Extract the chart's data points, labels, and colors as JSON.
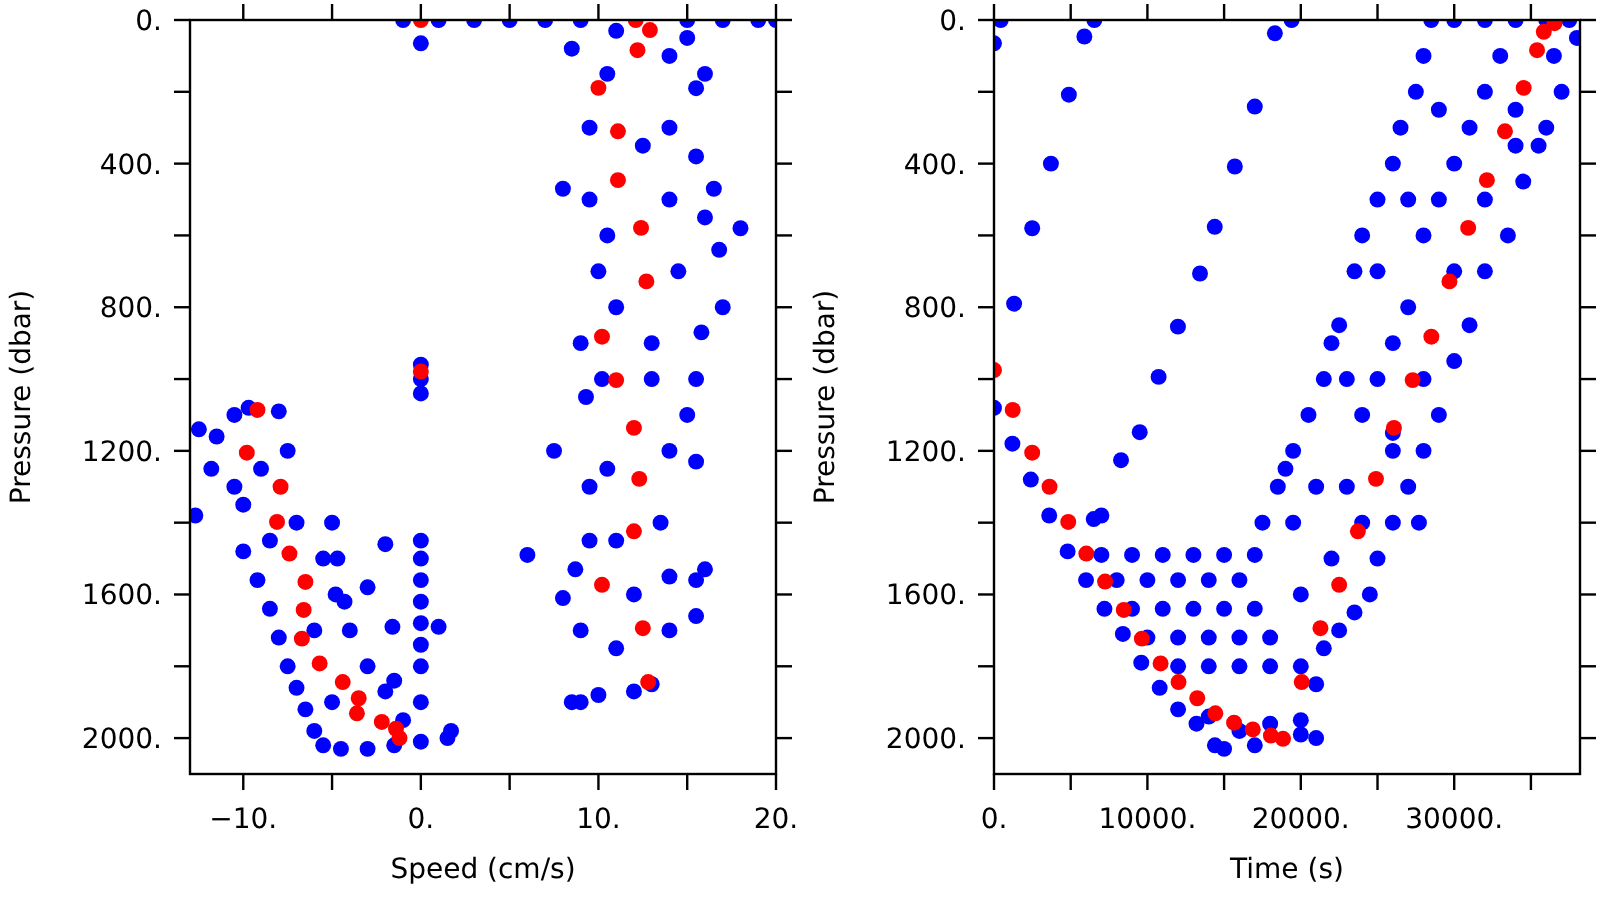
{
  "chart_data": [
    {
      "type": "scatter",
      "xlabel": "Speed (cm/s)",
      "ylabel": "Pressure (dbar)",
      "xlim": [
        -13,
        20
      ],
      "ylim": [
        2100,
        0
      ],
      "marker": "circle",
      "grid": false,
      "xticks": [
        {
          "value": -10,
          "label": "−10."
        },
        {
          "value": -5,
          "label": null
        },
        {
          "value": 0,
          "label": "0."
        },
        {
          "value": 5,
          "label": null
        },
        {
          "value": 10,
          "label": "10."
        },
        {
          "value": 15,
          "label": null
        },
        {
          "value": 20,
          "label": "20."
        }
      ],
      "yticks": [
        {
          "value": 0,
          "label": "0."
        },
        {
          "value": 200,
          "label": null
        },
        {
          "value": 400,
          "label": "400."
        },
        {
          "value": 600,
          "label": null
        },
        {
          "value": 800,
          "label": "800."
        },
        {
          "value": 1000,
          "label": null
        },
        {
          "value": 1200,
          "label": "1200."
        },
        {
          "value": 1400,
          "label": null
        },
        {
          "value": 1600,
          "label": "1600."
        },
        {
          "value": 1800,
          "label": null
        },
        {
          "value": 2000,
          "label": "2000."
        }
      ],
      "series": [
        {
          "color": "#0000ff",
          "x": [
            -1,
            1,
            3,
            5,
            7,
            9,
            15,
            17,
            19,
            20,
            0,
            0,
            0,
            0,
            0,
            0,
            0,
            0,
            0,
            0,
            0,
            0,
            -2,
            -1.6,
            1,
            -3,
            -4.7,
            -4.3,
            -1.5,
            6,
            -12.5,
            -12.7,
            -11.5,
            -10.5,
            -9.7,
            -8,
            -11.8,
            -10.5,
            -10,
            -9,
            -7.5,
            -10,
            -9.2,
            -8.5,
            -8,
            -7.5,
            -7,
            -6.5,
            -6,
            -5.5,
            -4.5,
            -3,
            -1.5,
            0,
            1.5,
            1.7,
            -5,
            -5.5,
            -4.8,
            -4,
            -3,
            -2,
            -1,
            -7,
            -6,
            -5,
            -8.5,
            8,
            7.5,
            8.5,
            9,
            10,
            12,
            13,
            8,
            8.7,
            9.5,
            16,
            15.5,
            15.5,
            14,
            9,
            9.5,
            15.5,
            15,
            15.5,
            9.3,
            9,
            15.8,
            17,
            16.8,
            18,
            16,
            16.5,
            15.5,
            9.5,
            15.5,
            16,
            8.5,
            15,
            10,
            9.5,
            10.5,
            14,
            14,
            14.5,
            13,
            14,
            13.5,
            11,
            10.5,
            11,
            10.5,
            12.5,
            11,
            14,
            11,
            13,
            12,
            10.2,
            14
          ],
          "values": [
            0,
            0,
            0,
            0,
            0,
            0,
            0,
            0,
            0,
            0,
            65,
            960,
            1000,
            1040,
            1450,
            1500,
            1560,
            1620,
            1680,
            1740,
            1800,
            1900,
            1460,
            1690,
            1690,
            1580,
            1500,
            1620,
            1840,
            1490,
            1140,
            1380,
            1160,
            1100,
            1080,
            1090,
            1250,
            1300,
            1350,
            1250,
            1200,
            1480,
            1560,
            1640,
            1720,
            1800,
            1860,
            1920,
            1980,
            2020,
            2030,
            2030,
            2020,
            2010,
            2000,
            1980,
            1400,
            1500,
            1600,
            1700,
            1800,
            1870,
            1950,
            1400,
            1700,
            1900,
            1450,
            470,
            1200,
            1900,
            1900,
            1880,
            1870,
            1850,
            1610,
            1530,
            1450,
            1530,
            1660,
            1560,
            1700,
            1700,
            1300,
            1230,
            1100,
            1000,
            1050,
            900,
            870,
            800,
            640,
            580,
            550,
            470,
            380,
            300,
            190,
            150,
            80,
            50,
            700,
            500,
            150,
            300,
            500,
            700,
            900,
            1200,
            1400,
            1450,
            1250,
            800,
            600,
            350,
            30,
            1550,
            1750,
            1000,
            1600,
            1000,
            100
          ]
        },
        {
          "color": "#ff0000",
          "x": [
            0,
            12.1,
            12.9,
            12.2,
            10,
            11.1,
            11.1,
            12.4,
            12.7,
            10.2,
            11,
            12,
            12.3,
            12,
            10.2,
            12.5,
            12.8,
            0,
            -9.2,
            -9.8,
            -7.9,
            -8.1,
            -7.4,
            -6.5,
            -6.6,
            -6.7,
            -5.7,
            -4.4,
            -3.5,
            -3.6,
            -2.2,
            -1.4,
            -1.2
          ],
          "values": [
            0,
            0,
            28,
            84,
            189,
            310,
            446,
            579,
            728,
            882,
            1003,
            1136,
            1278,
            1424,
            1573,
            1694,
            1844,
            979,
            1086,
            1205,
            1300,
            1398,
            1486,
            1565,
            1643,
            1723,
            1792,
            1844,
            1889,
            1931,
            1955,
            1974,
            2000
          ]
        }
      ]
    },
    {
      "type": "scatter",
      "xlabel": "Time (s)",
      "ylabel": "Pressure (dbar)",
      "xlim": [
        0,
        38200
      ],
      "ylim": [
        2100,
        0
      ],
      "marker": "circle",
      "grid": false,
      "xticks": [
        {
          "value": 0,
          "label": "0."
        },
        {
          "value": 5000,
          "label": null
        },
        {
          "value": 10000,
          "label": "10000."
        },
        {
          "value": 15000,
          "label": null
        },
        {
          "value": 20000,
          "label": "20000."
        },
        {
          "value": 25000,
          "label": null
        },
        {
          "value": 30000,
          "label": "30000."
        },
        {
          "value": 35000,
          "label": null
        }
      ],
      "yticks": [
        {
          "value": 0,
          "label": "0."
        },
        {
          "value": 200,
          "label": null
        },
        {
          "value": 400,
          "label": "400."
        },
        {
          "value": 600,
          "label": null
        },
        {
          "value": 800,
          "label": "800."
        },
        {
          "value": 1000,
          "label": null
        },
        {
          "value": 1200,
          "label": "1200."
        },
        {
          "value": 1400,
          "label": null
        },
        {
          "value": 1600,
          "label": "1600."
        },
        {
          "value": 1800,
          "label": null
        },
        {
          "value": 2000,
          "label": "2000."
        }
      ],
      "series": [
        {
          "color": "#0000ff",
          "x": [
            8280,
            9500,
            10730,
            11990,
            13430,
            14390,
            15700,
            17000,
            18310,
            19400,
            0,
            1310,
            2490,
            3710,
            4880,
            5890,
            6540,
            440,
            7000,
            9000,
            11000,
            13000,
            15000,
            17000,
            8000,
            10000,
            12000,
            14000,
            16000,
            9000,
            11000,
            13000,
            15000,
            17000,
            10000,
            12000,
            14000,
            16000,
            18000,
            12000,
            14000,
            16000,
            18000,
            20000,
            14000,
            16000,
            18000,
            20000,
            15000,
            17000,
            0,
            1200,
            2400,
            3600,
            4800,
            6000,
            7200,
            8400,
            9600,
            10800,
            12000,
            13200,
            14400,
            7000,
            6500,
            17500,
            18500,
            19000,
            19500,
            20500,
            21500,
            22000,
            22500,
            23500,
            24000,
            25000,
            26000,
            26500,
            27500,
            28000,
            28500,
            30000,
            32000,
            34000,
            36000,
            37500,
            38000,
            37000,
            36000,
            35500,
            34500,
            33500,
            32000,
            31000,
            30000,
            29000,
            28000,
            27000,
            26000,
            25000,
            24500,
            23500,
            22500,
            21500,
            21000,
            20000,
            21000,
            19500,
            20000,
            22000,
            23000,
            24000,
            25000,
            26000,
            27000,
            28000,
            29000,
            30000,
            31000,
            32000,
            33000,
            25000,
            27000,
            23000,
            21000,
            29000,
            34000,
            36500,
            24000,
            26000,
            28000,
            30000,
            32000,
            34000,
            27700,
            26000
          ],
          "values": [
            1226,
            1148,
            994,
            854,
            706,
            576,
            408,
            241,
            37,
            0,
            65,
            790,
            580,
            400,
            208,
            46,
            0,
            0,
            1490,
            1490,
            1490,
            1490,
            1490,
            1490,
            1560,
            1560,
            1560,
            1560,
            1560,
            1640,
            1640,
            1640,
            1640,
            1640,
            1720,
            1720,
            1720,
            1720,
            1720,
            1800,
            1800,
            1800,
            1800,
            1800,
            1940,
            1980,
            1960,
            1990,
            2030,
            2020,
            1080,
            1180,
            1280,
            1380,
            1480,
            1560,
            1640,
            1710,
            1790,
            1860,
            1920,
            1960,
            2020,
            1380,
            1390,
            1400,
            1300,
            1250,
            1200,
            1100,
            1000,
            900,
            850,
            700,
            600,
            500,
            400,
            300,
            200,
            100,
            0,
            0,
            0,
            0,
            0,
            0,
            50,
            200,
            300,
            350,
            450,
            600,
            700,
            850,
            950,
            1100,
            1200,
            1300,
            1400,
            1500,
            1600,
            1650,
            1700,
            1750,
            1850,
            1950,
            2000,
            1400,
            1600,
            1500,
            1300,
            1100,
            1000,
            900,
            800,
            600,
            500,
            400,
            300,
            200,
            100,
            700,
            500,
            1000,
            1300,
            250,
            250,
            100,
            1400,
            1200,
            1000,
            700,
            500,
            350,
            1400,
            1150
          ]
        },
        {
          "color": "#ff0000",
          "x": [
            0,
            1220,
            2490,
            3620,
            4840,
            6020,
            7240,
            8460,
            9640,
            10860,
            12030,
            13250,
            14430,
            15650,
            16870,
            18050,
            18840,
            20060,
            21280,
            22500,
            23720,
            24900,
            26070,
            27290,
            28510,
            29690,
            30910,
            32130,
            33310,
            34530,
            35400,
            35840,
            36540
          ],
          "values": [
            975,
            1086,
            1205,
            1300,
            1398,
            1486,
            1564,
            1643,
            1723,
            1792,
            1844,
            1889,
            1931,
            1957,
            1976,
            1993,
            2002,
            1844,
            1694,
            1573,
            1424,
            1278,
            1136,
            1003,
            882,
            728,
            579,
            446,
            310,
            189,
            84,
            33,
            9
          ]
        }
      ]
    }
  ]
}
